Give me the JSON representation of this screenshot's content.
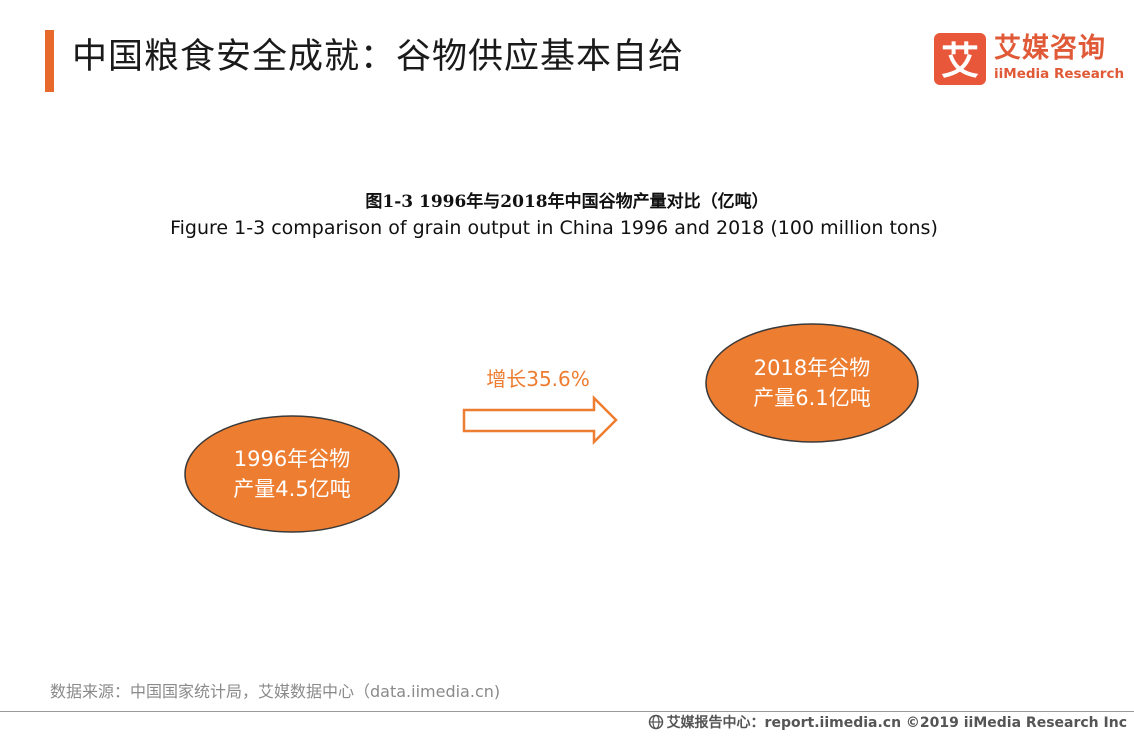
{
  "header": {
    "title": "中国粮食安全成就：谷物供应基本自给",
    "accent_color": "#e8692c"
  },
  "logo": {
    "mark_char": "艾",
    "name_cn": "艾媒咨询",
    "name_en": "iiMedia Research",
    "brand_color": "#e05a38"
  },
  "figure": {
    "title_cn": "图1-3 1996年与2018年中国谷物产量对比（亿吨）",
    "title_en": "Figure 1-3 comparison  of grain output  in China 1996 and 2018 (100 million tons)"
  },
  "diagram": {
    "node_1996": {
      "line1": "1996年谷物",
      "line2": "产量4.5亿吨"
    },
    "node_2018": {
      "line1": "2018年谷物",
      "line2": "产量6.1亿吨"
    },
    "growth_label": "增长35.6%",
    "node_fill": "#ed7d31",
    "node_stroke": "#3a3a3a",
    "arrow_color": "#ed7d31"
  },
  "source": "数据来源：中国国家统计局，艾媒数据中心（data.iimedia.cn)",
  "footer": "艾媒报告中心：report.iimedia.cn  ©2019  iiMedia Research  Inc"
}
